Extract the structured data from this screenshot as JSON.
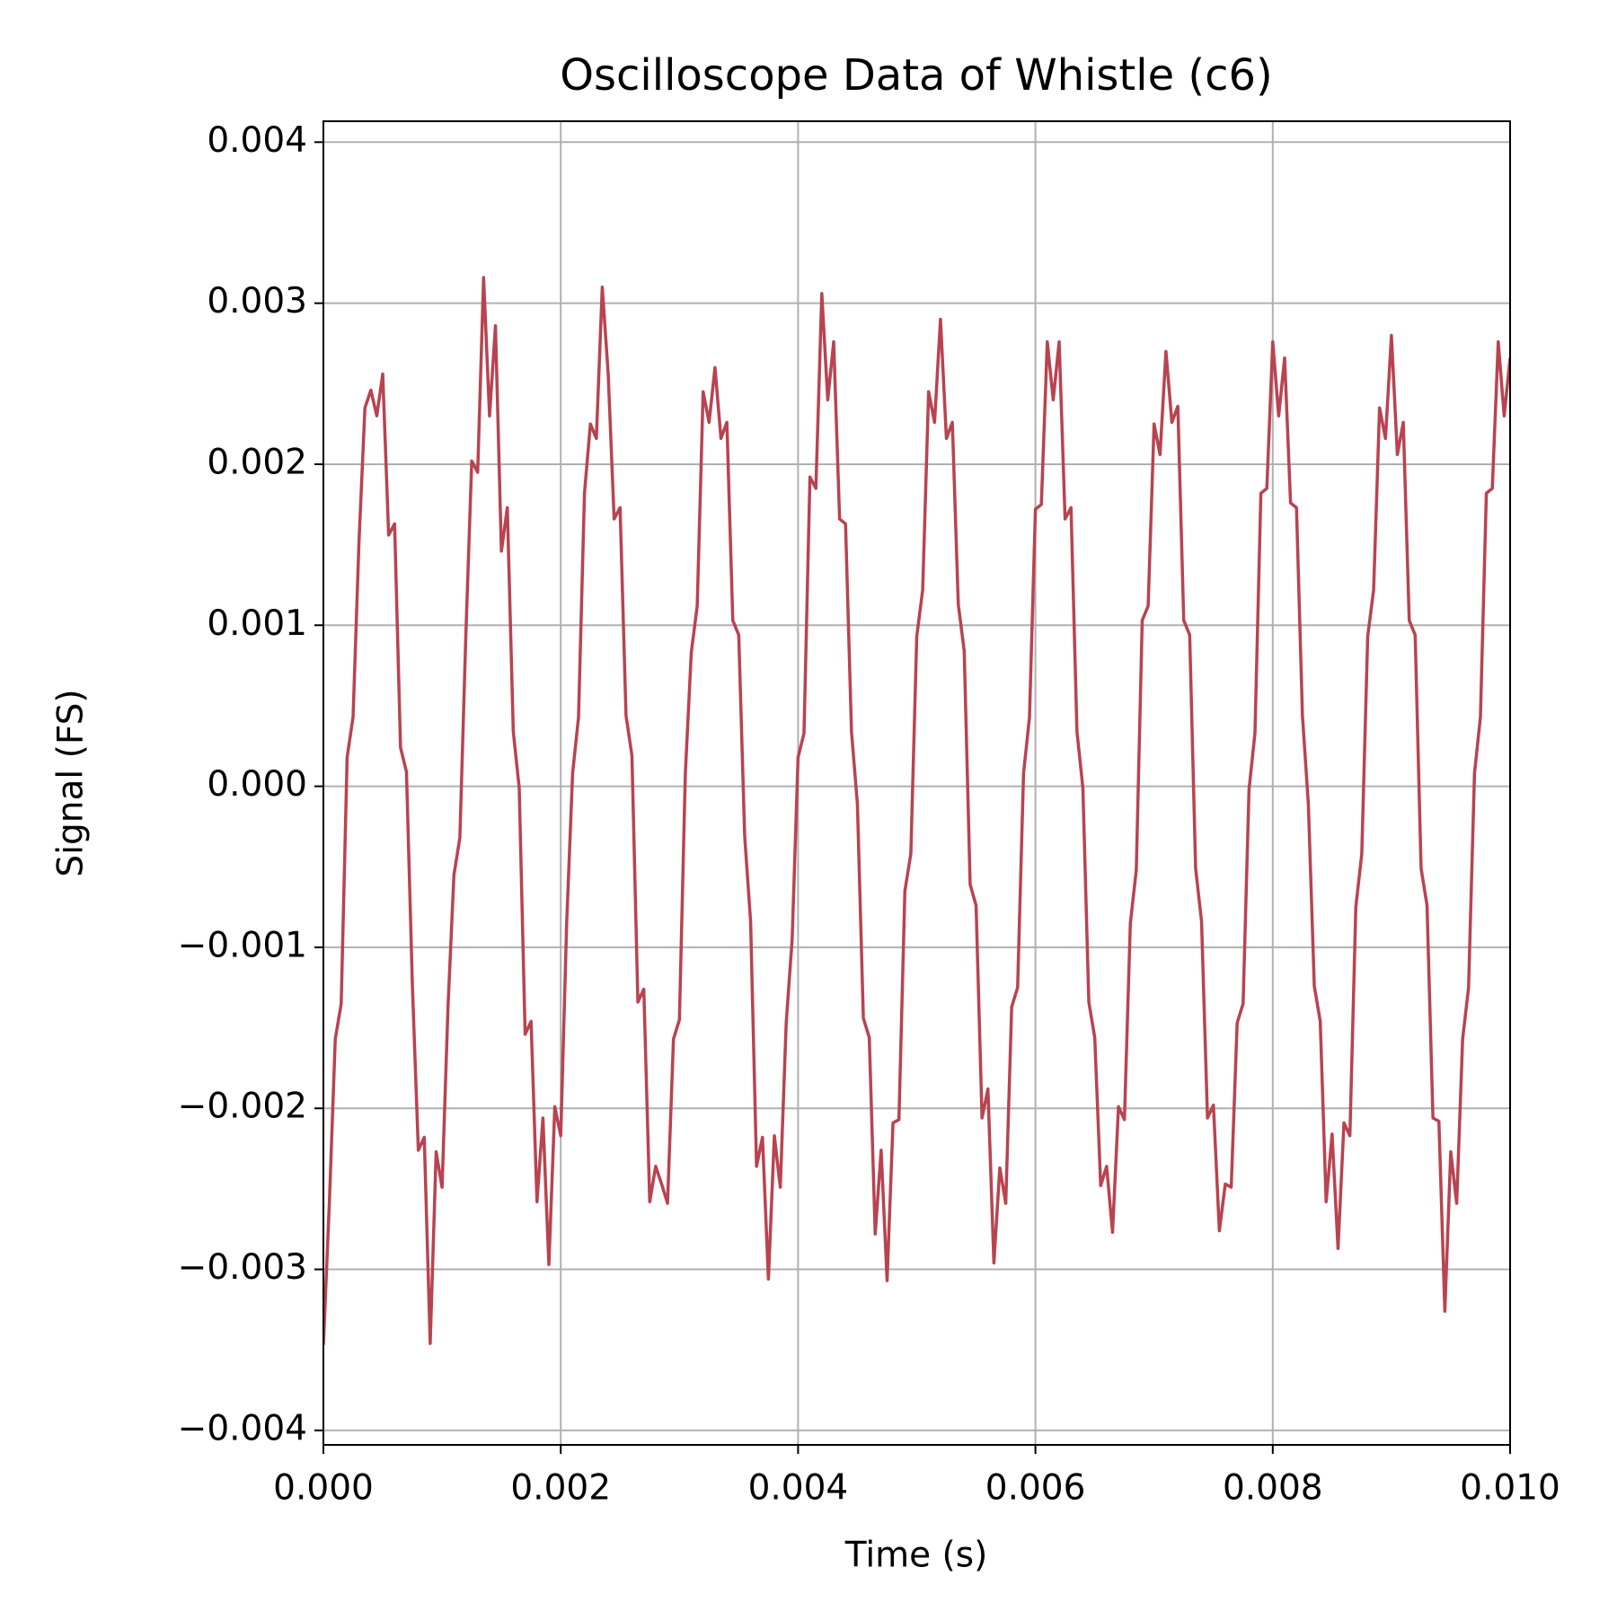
{
  "chart_data": {
    "type": "line",
    "title": "Oscilloscope Data of Whistle (c6)",
    "x_label": "Time (s)",
    "y_label": "Signal (FS)",
    "color": "#b94350",
    "grid": true,
    "xlim": [
      0,
      0.01
    ],
    "xticks": [
      {
        "value": 0,
        "label": "0.000"
      },
      0.002,
      0.004,
      0.006,
      0.008,
      {
        "value": 0.01,
        "label": "0.010"
      }
    ],
    "ylim": [
      -0.00409,
      0.00413
    ],
    "yticks": [
      {
        "value": -0.004,
        "label": "−0.004"
      },
      {
        "value": -0.003,
        "label": "−0.003"
      },
      {
        "value": -0.002,
        "label": "−0.002"
      },
      {
        "value": -0.001,
        "label": "−0.001"
      },
      {
        "value": 0,
        "label": "0.000"
      },
      0.001,
      0.002,
      0.003,
      0.004
    ],
    "x": [
      0,
      5e-05,
      0.0001,
      0.00015,
      0.0002,
      0.00025,
      0.0003,
      0.00035,
      0.0004,
      0.00045,
      0.0005,
      0.00055,
      0.0006,
      0.00065,
      0.0007,
      0.00075,
      0.0008,
      0.00085,
      0.0009,
      0.00095,
      0.001,
      0.00105,
      0.0011,
      0.00115,
      0.0012,
      0.00125,
      0.0013,
      0.00135,
      0.0014,
      0.00145,
      0.0015,
      0.00155,
      0.0016,
      0.00165,
      0.0017,
      0.00175,
      0.0018,
      0.00185,
      0.0019,
      0.00195,
      0.002,
      0.00205,
      0.0021,
      0.00215,
      0.0022,
      0.00225,
      0.0023,
      0.00235,
      0.0024,
      0.00245,
      0.0025,
      0.00255,
      0.0026,
      0.00265,
      0.0027,
      0.00275,
      0.0028,
      0.00285,
      0.0029,
      0.00295,
      0.003,
      0.00305,
      0.0031,
      0.00315,
      0.0032,
      0.00325,
      0.0033,
      0.00335,
      0.0034,
      0.00345,
      0.0035,
      0.00355,
      0.0036,
      0.00365,
      0.0037,
      0.00375,
      0.0038,
      0.00385,
      0.0039,
      0.00395,
      0.004,
      0.00405,
      0.0041,
      0.00415,
      0.0042,
      0.00425,
      0.0043,
      0.00435,
      0.0044,
      0.00445,
      0.0045,
      0.00455,
      0.0046,
      0.00465,
      0.0047,
      0.00475,
      0.0048,
      0.00485,
      0.0049,
      0.00495,
      0.005,
      0.00505,
      0.0051,
      0.00515,
      0.0052,
      0.00525,
      0.0053,
      0.00535,
      0.0054,
      0.00545,
      0.0055,
      0.00555,
      0.0056,
      0.00565,
      0.0057,
      0.00575,
      0.0058,
      0.00585,
      0.0059,
      0.00595,
      0.006,
      0.00605,
      0.0061,
      0.00615,
      0.0062,
      0.00625,
      0.0063,
      0.00635,
      0.0064,
      0.00645,
      0.0065,
      0.00655,
      0.0066,
      0.00665,
      0.0067,
      0.00675,
      0.0068,
      0.00685,
      0.0069,
      0.00695,
      0.007,
      0.00705,
      0.0071,
      0.00715,
      0.0072,
      0.00725,
      0.0073,
      0.00735,
      0.0074,
      0.00745,
      0.0075,
      0.00755,
      0.0076,
      0.00765,
      0.0077,
      0.00775,
      0.0078,
      0.00785,
      0.0079,
      0.00795,
      0.008,
      0.00805,
      0.0081,
      0.00815,
      0.0082,
      0.00825,
      0.0083,
      0.00835,
      0.0084,
      0.00845,
      0.0085,
      0.00855,
      0.0086,
      0.00865,
      0.0087,
      0.00875,
      0.0088,
      0.00885,
      0.0089,
      0.00895,
      0.009,
      0.00905,
      0.0091,
      0.00915,
      0.0092,
      0.00925,
      0.0093,
      0.00935,
      0.0094,
      0.00945,
      0.0095,
      0.00955,
      0.0096,
      0.00965,
      0.0097,
      0.00975,
      0.0098,
      0.00985,
      0.0099,
      0.00995,
      0.01
    ],
    "values": [
      -0.00347,
      -0.00259,
      -0.00157,
      -0.00135,
      0.00018,
      0.00043,
      0.00152,
      0.00235,
      0.00246,
      0.0023,
      0.00256,
      0.00156,
      0.00163,
      0.00024,
      9e-05,
      -0.00124,
      -0.00226,
      -0.00218,
      -0.00346,
      -0.00227,
      -0.00249,
      -0.00137,
      -0.00055,
      -0.00032,
      0.00093,
      0.00202,
      0.00195,
      0.00316,
      0.0023,
      0.00286,
      0.00146,
      0.00173,
      0.00034,
      -1e-05,
      -0.00154,
      -0.00146,
      -0.00258,
      -0.00206,
      -0.00297,
      -0.00199,
      -0.00217,
      -0.00085,
      8e-05,
      0.00043,
      0.00182,
      0.00225,
      0.00216,
      0.0031,
      0.00256,
      0.00166,
      0.00173,
      0.00044,
      0.00019,
      -0.00134,
      -0.00126,
      -0.00258,
      -0.00236,
      -0.00247,
      -0.00259,
      -0.00157,
      -0.00145,
      8e-05,
      0.00083,
      0.00112,
      0.00245,
      0.00226,
      0.0026,
      0.00216,
      0.00226,
      0.00103,
      0.00094,
      -0.00031,
      -0.00084,
      -0.00236,
      -0.00218,
      -0.00306,
      -0.00217,
      -0.00249,
      -0.00147,
      -0.00095,
      0.00018,
      0.00033,
      0.00192,
      0.00185,
      0.00306,
      0.0024,
      0.00276,
      0.00166,
      0.00163,
      0.00034,
      -0.00011,
      -0.00144,
      -0.00156,
      -0.00278,
      -0.00226,
      -0.00307,
      -0.00209,
      -0.00207,
      -0.00065,
      -0.00042,
      0.00093,
      0.00122,
      0.00245,
      0.00226,
      0.0029,
      0.00216,
      0.00226,
      0.00113,
      0.00084,
      -0.00061,
      -0.00074,
      -0.00206,
      -0.00188,
      -0.00296,
      -0.00237,
      -0.00259,
      -0.00137,
      -0.00125,
      8e-05,
      0.00043,
      0.00172,
      0.00175,
      0.00276,
      0.0024,
      0.00276,
      0.00166,
      0.00173,
      0.00034,
      -1e-05,
      -0.00134,
      -0.00156,
      -0.00248,
      -0.00236,
      -0.00277,
      -0.00199,
      -0.00207,
      -0.00085,
      -0.00052,
      0.00103,
      0.00112,
      0.00225,
      0.00206,
      0.0027,
      0.00226,
      0.00236,
      0.00103,
      0.00094,
      -0.00051,
      -0.00084,
      -0.00206,
      -0.00198,
      -0.00276,
      -0.00247,
      -0.00249,
      -0.00147,
      -0.00135,
      -2e-05,
      0.00033,
      0.00182,
      0.00185,
      0.00276,
      0.0023,
      0.00266,
      0.00176,
      0.00173,
      0.00044,
      -0.00011,
      -0.00124,
      -0.00146,
      -0.00258,
      -0.00216,
      -0.00287,
      -0.00209,
      -0.00217,
      -0.00075,
      -0.00042,
      0.00093,
      0.00122,
      0.00235,
      0.00216,
      0.0028,
      0.00206,
      0.00226,
      0.00103,
      0.00094,
      -0.00051,
      -0.00074,
      -0.00206,
      -0.00208,
      -0.00326,
      -0.00227,
      -0.00259,
      -0.00157,
      -0.00125,
      8e-05,
      0.00043,
      0.00182,
      0.00185,
      0.00276,
      0.0023,
      0.00266
    ]
  }
}
